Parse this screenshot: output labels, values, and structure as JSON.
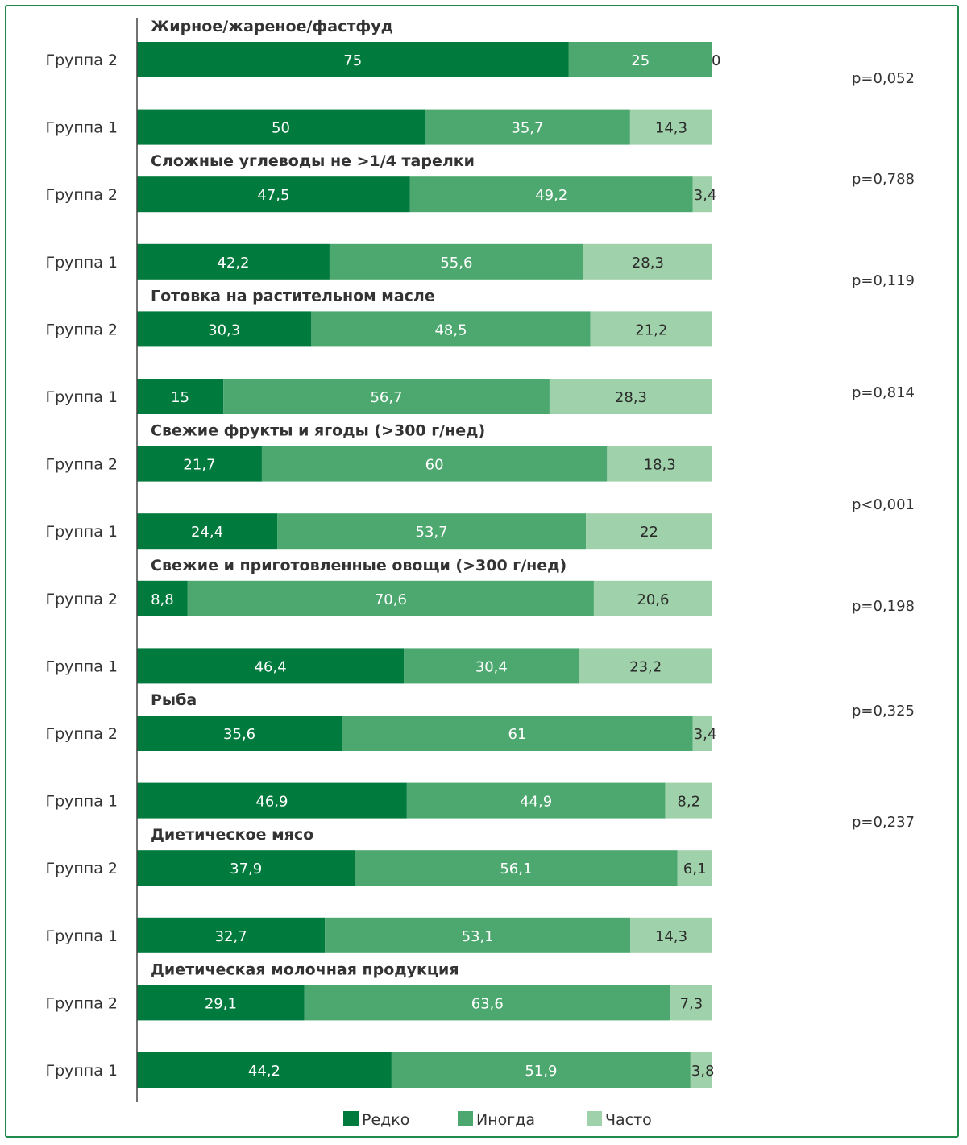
{
  "chart_data": {
    "type": "bar",
    "orientation": "horizontal",
    "stacked": true,
    "xlim": [
      0,
      100
    ],
    "legend_position": "bottom",
    "series": [
      {
        "name": "Редко",
        "color": "#007a3d"
      },
      {
        "name": "Иногда",
        "color": "#4ca86e"
      },
      {
        "name": "Часто",
        "color": "#9fd1aa"
      }
    ],
    "categories": [
      {
        "title": "Жирное/жареное/фастфуд",
        "rows": [
          {
            "group": "Группа 2",
            "values": [
              75,
              25,
              0
            ],
            "labels": [
              "75",
              "25",
              "0"
            ]
          },
          {
            "group": "Группа 1",
            "values": [
              50,
              35.7,
              14.3
            ],
            "labels": [
              "50",
              "35,7",
              "14,3"
            ]
          }
        ]
      },
      {
        "title": "Сложные углеводы не >1/4 тарелки",
        "rows": [
          {
            "group": "Группа 2",
            "values": [
              47.5,
              49.2,
              3.4
            ],
            "labels": [
              "47,5",
              "49,2",
              "3,4"
            ]
          },
          {
            "group": "Группа 1",
            "values": [
              42.2,
              55.6,
              28.3
            ],
            "labels": [
              "42,2",
              "55,6",
              "28,3"
            ]
          }
        ]
      },
      {
        "title": "Готовка на растительном масле",
        "rows": [
          {
            "group": "Группа 2",
            "values": [
              30.3,
              48.5,
              21.2
            ],
            "labels": [
              "30,3",
              "48,5",
              "21,2"
            ]
          },
          {
            "group": "Группа 1",
            "values": [
              15,
              56.7,
              28.3
            ],
            "labels": [
              "15",
              "56,7",
              "28,3"
            ]
          }
        ]
      },
      {
        "title": "Свежие фрукты и ягоды (>300 г/нед)",
        "rows": [
          {
            "group": "Группа 2",
            "values": [
              21.7,
              60,
              18.3
            ],
            "labels": [
              "21,7",
              "60",
              "18,3"
            ]
          },
          {
            "group": "Группа 1",
            "values": [
              24.4,
              53.7,
              22
            ],
            "labels": [
              "24,4",
              "53,7",
              "22"
            ]
          }
        ]
      },
      {
        "title": "Свежие и приготовленные овощи (>300 г/нед)",
        "rows": [
          {
            "group": "Группа 2",
            "values": [
              8.8,
              70.6,
              20.6
            ],
            "labels": [
              "8,8",
              "70,6",
              "20,6"
            ]
          },
          {
            "group": "Группа 1",
            "values": [
              46.4,
              30.4,
              23.2
            ],
            "labels": [
              "46,4",
              "30,4",
              "23,2"
            ]
          }
        ]
      },
      {
        "title": "Рыба",
        "rows": [
          {
            "group": "Группа 2",
            "values": [
              35.6,
              61,
              3.4
            ],
            "labels": [
              "35,6",
              "61",
              "3,4"
            ]
          },
          {
            "group": "Группа 1",
            "values": [
              46.9,
              44.9,
              8.2
            ],
            "labels": [
              "46,9",
              "44,9",
              "8,2"
            ]
          }
        ]
      },
      {
        "title": "Диетическое мясо",
        "rows": [
          {
            "group": "Группа 2",
            "values": [
              37.9,
              56.1,
              6.1
            ],
            "labels": [
              "37,9",
              "56,1",
              "6,1"
            ]
          },
          {
            "group": "Группа 1",
            "values": [
              32.7,
              53.1,
              14.3
            ],
            "labels": [
              "32,7",
              "53,1",
              "14,3"
            ]
          }
        ]
      },
      {
        "title": "Диетическая молочная продукция",
        "rows": [
          {
            "group": "Группа 2",
            "values": [
              29.1,
              63.6,
              7.3
            ],
            "labels": [
              "29,1",
              "63,6",
              "7,3"
            ]
          },
          {
            "group": "Группа 1",
            "values": [
              44.2,
              51.9,
              3.8
            ],
            "labels": [
              "44,2",
              "51,9",
              "3,8"
            ]
          }
        ]
      }
    ],
    "p_values": [
      "p=0,052",
      "p=0,788",
      "p=0,119",
      "p=0,814",
      "p<0,001",
      "p=0,198",
      "p=0,325",
      "p=0,237"
    ]
  }
}
